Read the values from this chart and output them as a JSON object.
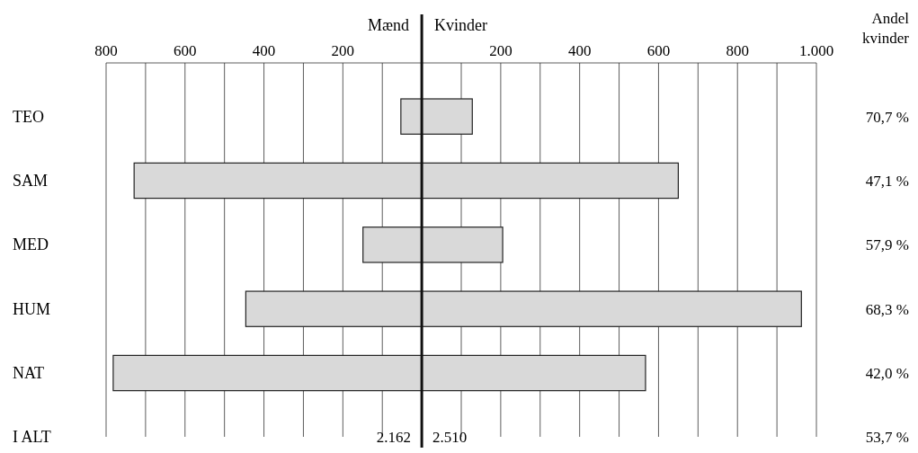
{
  "chart_data": {
    "type": "bar",
    "orientation": "horizontal",
    "stacked": true,
    "categories": [
      "TEO",
      "SAM",
      "MED",
      "HUM",
      "NAT",
      "I ALT"
    ],
    "series": [
      {
        "color": "#d9d9d9",
        "values": [
          -53,
          -729,
          -149,
          -446,
          -782,
          null
        ]
      },
      {
        "color": "#d9d9d9",
        "values": [
          128,
          650,
          205,
          962,
          567,
          null
        ]
      }
    ],
    "xlim": [
      -800,
      1000
    ],
    "xticks": [
      {
        "value": -800,
        "label": "800"
      },
      {
        "value": -700,
        "label": null
      },
      {
        "value": -600,
        "label": "600"
      },
      {
        "value": -500,
        "label": null
      },
      {
        "value": -400,
        "label": "400"
      },
      {
        "value": -300,
        "label": null
      },
      {
        "value": -200,
        "label": "200"
      },
      {
        "value": -100,
        "label": null
      },
      {
        "value": 100,
        "label": null
      },
      200,
      {
        "value": 300,
        "label": null
      },
      400,
      {
        "value": 500,
        "label": null
      },
      600,
      {
        "value": 700,
        "label": null
      },
      800,
      {
        "value": 900,
        "label": null
      },
      {
        "value": 1000,
        "label": "1.000"
      }
    ],
    "grid": "x",
    "annotations": [
      "Mænd",
      "Kvinder",
      "Andel kvinder",
      "70,7 %",
      "47,1 %",
      "57,9 %",
      "68,3 %",
      "42,0 %",
      "53,7 %",
      "2.162",
      "2.510"
    ]
  }
}
